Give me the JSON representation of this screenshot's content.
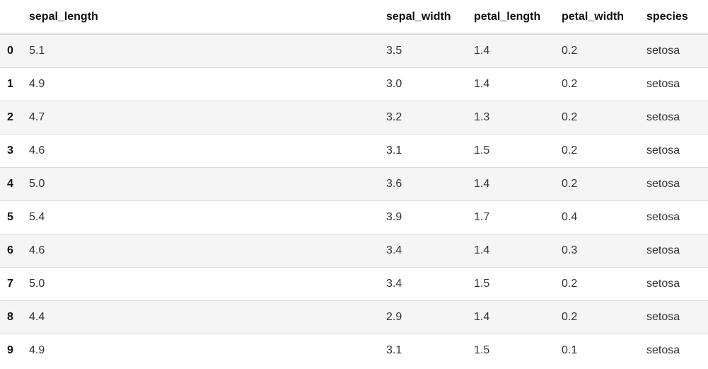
{
  "table": {
    "columns": [
      "sepal_length",
      "sepal_width",
      "petal_length",
      "petal_width",
      "species"
    ],
    "rows": [
      {
        "index": "0",
        "sepal_length": "5.1",
        "sepal_width": "3.5",
        "petal_length": "1.4",
        "petal_width": "0.2",
        "species": "setosa"
      },
      {
        "index": "1",
        "sepal_length": "4.9",
        "sepal_width": "3.0",
        "petal_length": "1.4",
        "petal_width": "0.2",
        "species": "setosa"
      },
      {
        "index": "2",
        "sepal_length": "4.7",
        "sepal_width": "3.2",
        "petal_length": "1.3",
        "petal_width": "0.2",
        "species": "setosa"
      },
      {
        "index": "3",
        "sepal_length": "4.6",
        "sepal_width": "3.1",
        "petal_length": "1.5",
        "petal_width": "0.2",
        "species": "setosa"
      },
      {
        "index": "4",
        "sepal_length": "5.0",
        "sepal_width": "3.6",
        "petal_length": "1.4",
        "petal_width": "0.2",
        "species": "setosa"
      },
      {
        "index": "5",
        "sepal_length": "5.4",
        "sepal_width": "3.9",
        "petal_length": "1.7",
        "petal_width": "0.4",
        "species": "setosa"
      },
      {
        "index": "6",
        "sepal_length": "4.6",
        "sepal_width": "3.4",
        "petal_length": "1.4",
        "petal_width": "0.3",
        "species": "setosa"
      },
      {
        "index": "7",
        "sepal_length": "5.0",
        "sepal_width": "3.4",
        "petal_length": "1.5",
        "petal_width": "0.2",
        "species": "setosa"
      },
      {
        "index": "8",
        "sepal_length": "4.4",
        "sepal_width": "2.9",
        "petal_length": "1.4",
        "petal_width": "0.2",
        "species": "setosa"
      },
      {
        "index": "9",
        "sepal_length": "4.9",
        "sepal_width": "3.1",
        "petal_length": "1.5",
        "petal_width": "0.1",
        "species": "setosa"
      }
    ]
  },
  "colors": {
    "row_stripe": "#f5f5f5",
    "row_border": "#dcdcdc",
    "text": "#222222"
  }
}
